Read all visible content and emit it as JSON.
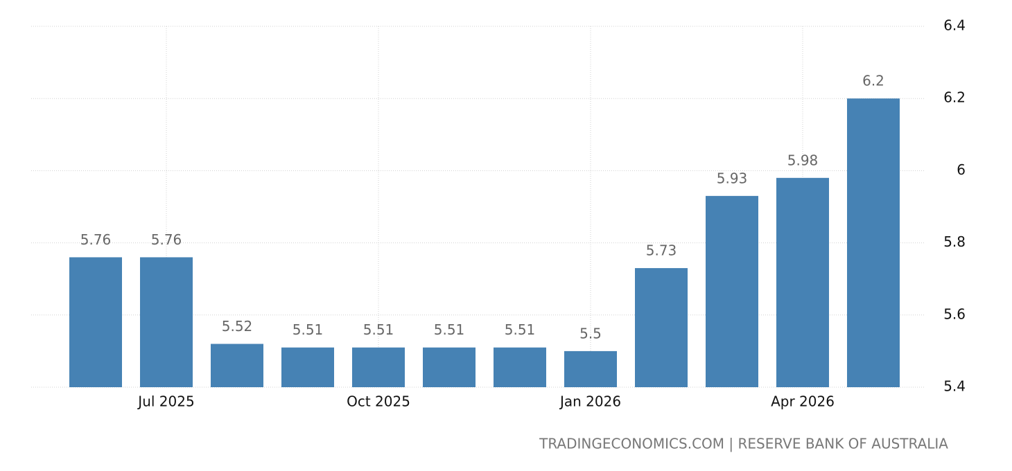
{
  "chart_data": {
    "type": "bar",
    "categories": [
      null,
      "Jul 2025",
      null,
      null,
      "Oct 2025",
      null,
      null,
      "Jan 2026",
      null,
      null,
      "Apr 2026",
      null
    ],
    "values": [
      5.76,
      5.76,
      5.52,
      5.51,
      5.51,
      5.51,
      5.51,
      5.5,
      5.73,
      5.93,
      5.98,
      6.2
    ],
    "color": "#4682b4",
    "ylim": [
      5.4,
      6.4
    ],
    "yticks": [
      5.4,
      5.6,
      5.8,
      6,
      6.2,
      6.4
    ],
    "grid": true,
    "source": "TRADINGECONOMICS.COM | RESERVE BANK OF AUSTRALIA"
  }
}
